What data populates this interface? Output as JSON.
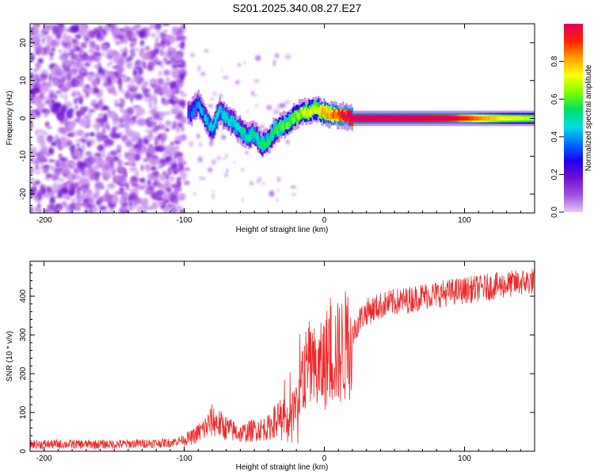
{
  "title": "S201.2025.340.08.27.E27",
  "chart_data": [
    {
      "type": "heatmap",
      "xlabel": "Height of straight line (km)",
      "ylabel": "Frequency (Hz)",
      "xlim": [
        -210,
        150
      ],
      "ylim": [
        -25,
        25
      ],
      "xticks": [
        -200,
        -100,
        0,
        100
      ],
      "yticks": [
        -20,
        -10,
        0,
        10,
        20
      ],
      "colorbar": {
        "label": "Normalized spectral amplitude",
        "range": [
          0,
          1
        ],
        "ticks": [
          "0.0",
          "0.2",
          "0.4",
          "0.6",
          "0.8"
        ],
        "colors": [
          "#e8c8f8",
          "#a050e0",
          "#7010d0",
          "#2000f0",
          "#0070ff",
          "#00e0e0",
          "#00e060",
          "#80ff00",
          "#ffff00",
          "#ffa000",
          "#ff2000",
          "#e00060"
        ]
      },
      "ridge": {
        "description_points_x": [
          -95,
          -90,
          -85,
          -80,
          -75,
          -70,
          -65,
          -60,
          -55,
          -50,
          -45,
          -40,
          -35,
          -30,
          -25,
          -20,
          -15,
          -10,
          -5,
          0,
          5,
          10,
          15,
          20,
          30,
          50,
          70,
          90,
          110,
          130,
          150
        ],
        "frequency_hz": [
          1.5,
          4,
          0,
          -3,
          2,
          0,
          -1,
          -3,
          -5,
          -4,
          -7,
          -6,
          -3,
          -2,
          -1,
          1,
          1.5,
          2,
          2.5,
          1.5,
          1,
          1,
          0.5,
          0,
          0,
          0,
          0,
          0,
          0,
          0,
          0
        ],
        "amplitude": [
          0.22,
          0.28,
          0.3,
          0.32,
          0.35,
          0.34,
          0.35,
          0.38,
          0.4,
          0.38,
          0.4,
          0.42,
          0.44,
          0.46,
          0.48,
          0.5,
          0.55,
          0.58,
          0.6,
          0.66,
          0.7,
          0.78,
          0.85,
          0.95,
          0.97,
          0.97,
          0.95,
          0.9,
          0.72,
          0.6,
          0.55
        ]
      },
      "noise_region_x": [
        -210,
        -100
      ]
    },
    {
      "type": "line",
      "xlabel": "Height of straight line (km)",
      "ylabel": "SNR (10 * v/v)",
      "xlim": [
        -210,
        150
      ],
      "ylim": [
        0,
        490
      ],
      "xticks": [
        -200,
        -100,
        0,
        100
      ],
      "yticks": [
        0,
        100,
        200,
        300,
        400
      ],
      "color": "#ee2a2a",
      "series_envelope": {
        "x": [
          -210,
          -150,
          -110,
          -95,
          -85,
          -80,
          -75,
          -70,
          -60,
          -50,
          -40,
          -35,
          -30,
          -25,
          -20,
          -15,
          -10,
          -5,
          0,
          5,
          10,
          15,
          20,
          25,
          30,
          40,
          50,
          60,
          70,
          80,
          90,
          100,
          110,
          120,
          130,
          140,
          150
        ],
        "y": [
          18,
          18,
          22,
          35,
          60,
          80,
          70,
          60,
          45,
          55,
          60,
          80,
          90,
          70,
          120,
          200,
          220,
          200,
          230,
          260,
          250,
          270,
          300,
          340,
          360,
          375,
          385,
          390,
          400,
          405,
          410,
          415,
          420,
          425,
          430,
          435,
          440
        ]
      }
    }
  ]
}
